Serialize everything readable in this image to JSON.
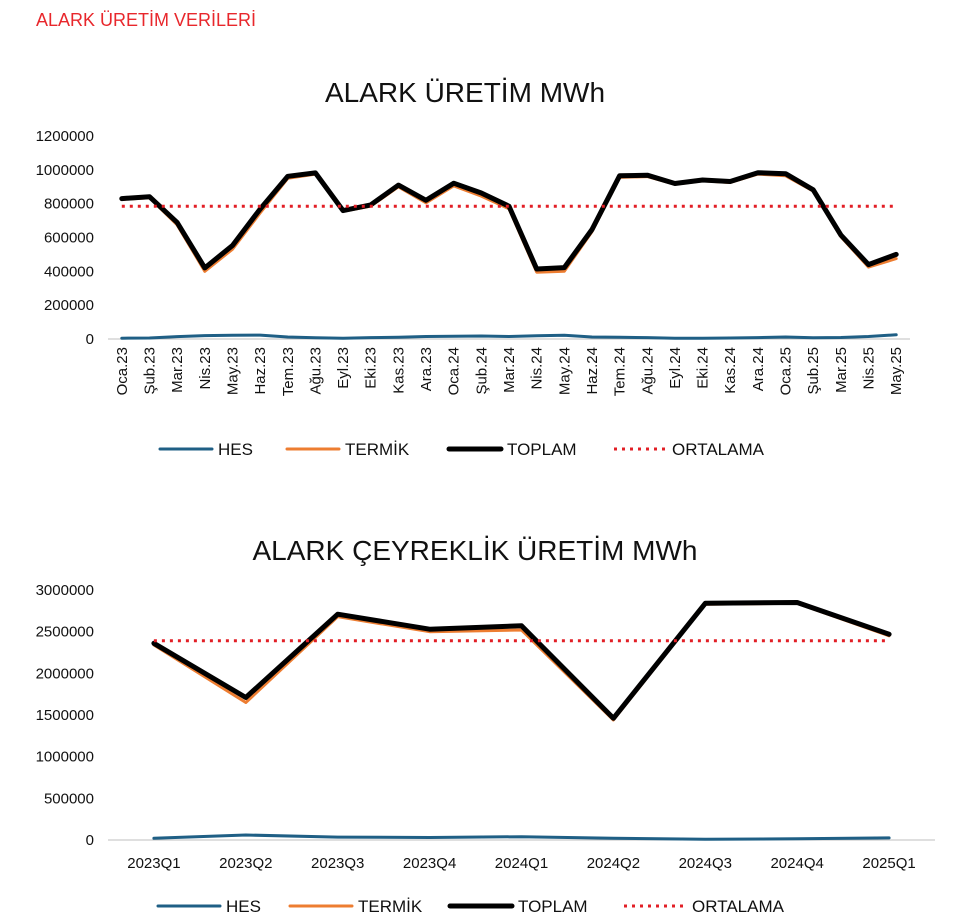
{
  "page_header": "ALARK ÜRETİM VERİLERİ",
  "colors": {
    "header": "#e8272c",
    "hes": "#1f5f85",
    "termik": "#ed7d31",
    "toplam": "#000000",
    "ortalama": "#e21f26",
    "axis": "#bfbfbf"
  },
  "chart_data": [
    {
      "type": "line",
      "title": "ALARK ÜRETİM MWh",
      "xlabel": "",
      "ylabel": "",
      "ylim": [
        0,
        1200000
      ],
      "yticks": [
        0,
        200000,
        400000,
        600000,
        800000,
        1000000,
        1200000
      ],
      "ytick_labels": [
        "0",
        "200000",
        "400000",
        "600000",
        "800000",
        "1000000",
        "1200000"
      ],
      "grid": false,
      "legend_position": "bottom",
      "categories": [
        "Oca.23",
        "Şub.23",
        "Mar.23",
        "Nis.23",
        "May.23",
        "Haz.23",
        "Tem.23",
        "Ağu.23",
        "Eyl.23",
        "Eki.23",
        "Kas.23",
        "Ara.23",
        "Oca.24",
        "Şub.24",
        "Mar.24",
        "Nis.24",
        "May.24",
        "Haz.24",
        "Tem.24",
        "Ağu.24",
        "Eyl.24",
        "Eki.24",
        "Kas.24",
        "Ara.24",
        "Oca.25",
        "Şub.25",
        "Mar.25",
        "Nis.25",
        "May.25"
      ],
      "series": [
        {
          "name": "HES",
          "color": "#1f5f85",
          "width": 3,
          "dash": "",
          "values": [
            5000,
            6000,
            14000,
            20000,
            22000,
            23000,
            12000,
            7000,
            4000,
            8000,
            10000,
            15000,
            16000,
            18000,
            15000,
            19000,
            22000,
            12000,
            10000,
            8000,
            4000,
            5000,
            6000,
            8000,
            12000,
            7000,
            9000,
            15000,
            25000
          ]
        },
        {
          "name": "TERMİK",
          "color": "#ed7d31",
          "width": 3,
          "dash": "",
          "values": [
            825000,
            835000,
            675000,
            400000,
            530000,
            745000,
            950000,
            975000,
            755000,
            785000,
            900000,
            805000,
            905000,
            845000,
            770000,
            395000,
            400000,
            635000,
            955000,
            960000,
            915000,
            935000,
            925000,
            975000,
            965000,
            875000,
            605000,
            425000,
            475000
          ]
        },
        {
          "name": "TOPLAM",
          "color": "#000000",
          "width": 5,
          "dash": "",
          "values": [
            830000,
            841000,
            689000,
            420000,
            552000,
            768000,
            962000,
            982000,
            759000,
            793000,
            910000,
            820000,
            921000,
            863000,
            785000,
            414000,
            422000,
            647000,
            965000,
            968000,
            919000,
            940000,
            931000,
            983000,
            977000,
            882000,
            614000,
            440000,
            500000
          ]
        },
        {
          "name": "ORTALAMA",
          "color": "#e21f26",
          "width": 3,
          "dash": "3,5",
          "values": [
            785000,
            785000,
            785000,
            785000,
            785000,
            785000,
            785000,
            785000,
            785000,
            785000,
            785000,
            785000,
            785000,
            785000,
            785000,
            785000,
            785000,
            785000,
            785000,
            785000,
            785000,
            785000,
            785000,
            785000,
            785000,
            785000,
            785000,
            785000,
            785000
          ]
        }
      ]
    },
    {
      "type": "line",
      "title": "ALARK ÇEYREKLİK ÜRETİM MWh",
      "xlabel": "",
      "ylabel": "",
      "ylim": [
        0,
        3000000
      ],
      "yticks": [
        0,
        500000,
        1000000,
        1500000,
        2000000,
        2500000,
        3000000
      ],
      "ytick_labels": [
        "0",
        "500000",
        "1000000",
        "1500000",
        "2000000",
        "2500000",
        "3000000"
      ],
      "grid": false,
      "legend_position": "bottom",
      "categories": [
        "2023Q1",
        "2023Q2",
        "2023Q3",
        "2023Q4",
        "2024Q1",
        "2024Q2",
        "2024Q3",
        "2024Q4",
        "2025Q1"
      ],
      "series": [
        {
          "name": "HES",
          "color": "#1f5f85",
          "width": 3,
          "dash": "",
          "values": [
            20000,
            60000,
            35000,
            30000,
            40000,
            20000,
            10000,
            15000,
            25000
          ]
        },
        {
          "name": "TERMİK",
          "color": "#ed7d31",
          "width": 3,
          "dash": "",
          "values": [
            2340000,
            1650000,
            2680000,
            2500000,
            2520000,
            1440000,
            2830000,
            2840000,
            2450000
          ]
        },
        {
          "name": "TOPLAM",
          "color": "#000000",
          "width": 5,
          "dash": "",
          "values": [
            2360000,
            1710000,
            2710000,
            2530000,
            2570000,
            1460000,
            2840000,
            2850000,
            2470000
          ]
        },
        {
          "name": "ORTALAMA",
          "color": "#e21f26",
          "width": 3,
          "dash": "3,5",
          "values": [
            2390000,
            2390000,
            2390000,
            2390000,
            2390000,
            2390000,
            2390000,
            2390000,
            2390000
          ]
        }
      ]
    }
  ]
}
